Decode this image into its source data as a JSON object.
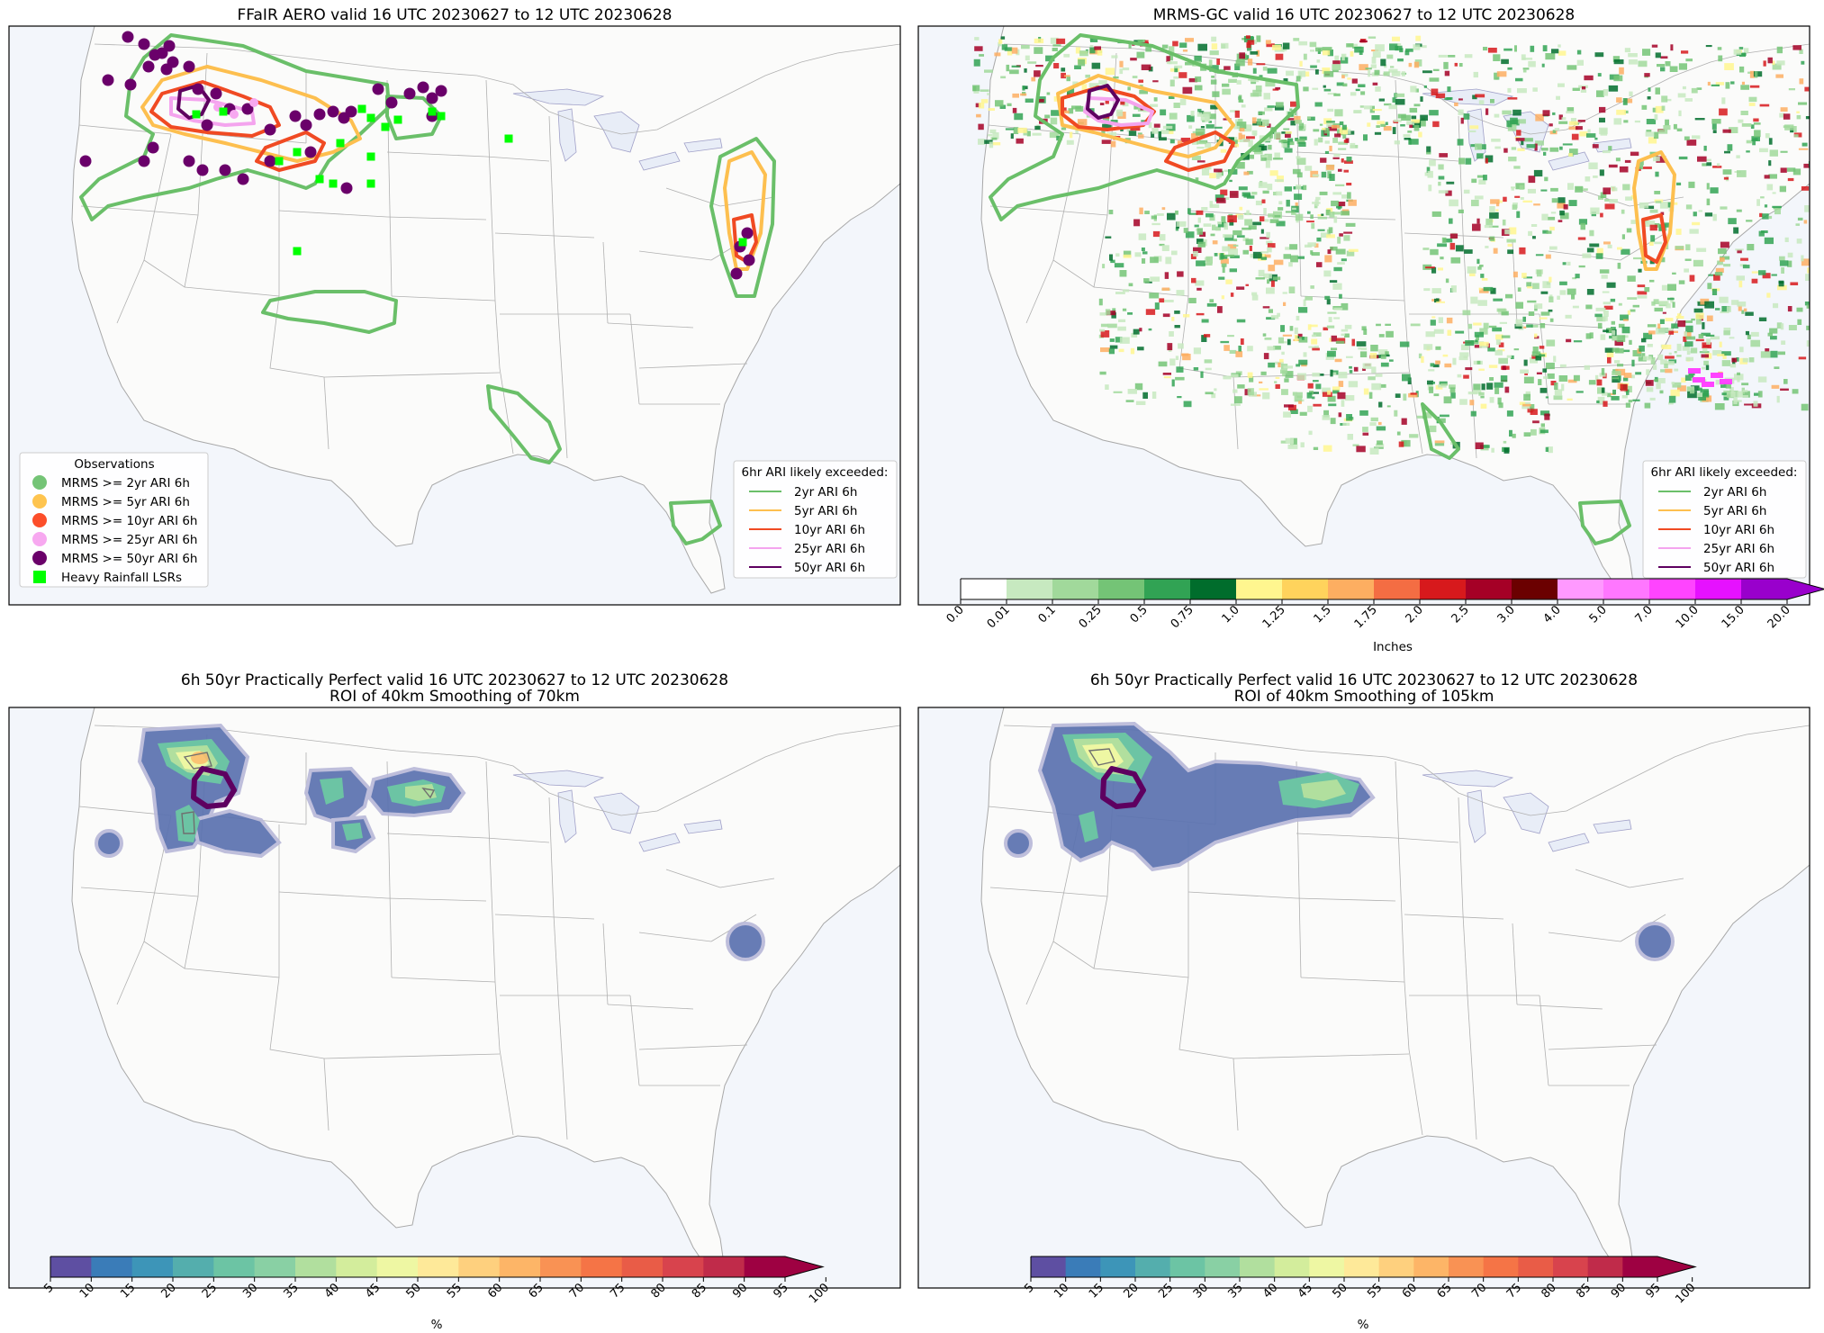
{
  "panels": [
    {
      "title": "FFaIR AERO valid 16 UTC 20230627 to 12 UTC 20230628",
      "obs_legend": {
        "title": "Observations",
        "items": [
          {
            "label": "MRMS >= 2yr ARI 6h",
            "color": "#74c476"
          },
          {
            "label": "MRMS >= 5yr ARI 6h",
            "color": "#fec44f"
          },
          {
            "label": "MRMS >= 10yr ARI 6h",
            "color": "#fc4e2a"
          },
          {
            "label": "MRMS >= 25yr ARI 6h",
            "color": "#f7a8f0"
          },
          {
            "label": "MRMS >= 50yr ARI 6h",
            "color": "#6a006a"
          },
          {
            "label": "Heavy Rainfall LSRs",
            "color": "#00ff00"
          }
        ]
      },
      "ari_legend": {
        "title": "6hr ARI likely exceeded:",
        "items": [
          {
            "label": "2yr ARI 6h",
            "color": "#6abf69"
          },
          {
            "label": "5yr ARI 6h",
            "color": "#fdbf4f"
          },
          {
            "label": "10yr ARI 6h",
            "color": "#f04a23"
          },
          {
            "label": "25yr ARI 6h",
            "color": "#f4a4ee"
          },
          {
            "label": "50yr ARI 6h",
            "color": "#5e0060"
          }
        ]
      }
    },
    {
      "title": "MRMS-GC valid 16 UTC 20230627 to 12 UTC 20230628",
      "ari_legend": {
        "title": "6hr ARI likely exceeded:",
        "items": [
          {
            "label": "2yr ARI 6h",
            "color": "#6abf69"
          },
          {
            "label": "5yr ARI 6h",
            "color": "#fdbf4f"
          },
          {
            "label": "10yr ARI 6h",
            "color": "#f04a23"
          },
          {
            "label": "25yr ARI 6h",
            "color": "#f4a4ee"
          },
          {
            "label": "50yr ARI 6h",
            "color": "#5e0060"
          }
        ]
      },
      "colorbar": {
        "label": "Inches",
        "ticks": [
          "0.0",
          "0.01",
          "0.1",
          "0.25",
          "0.5",
          "0.75",
          "1.0",
          "1.25",
          "1.5",
          "1.75",
          "2.0",
          "2.5",
          "3.0",
          "4.0",
          "5.0",
          "7.0",
          "10.0",
          "15.0",
          "20.0"
        ],
        "colors": [
          "#ffffff",
          "#c7e9c0",
          "#a1d99b",
          "#74c476",
          "#31a354",
          "#006d2c",
          "#fff68f",
          "#ffd35c",
          "#fdae61",
          "#f46d43",
          "#d7191c",
          "#a50026",
          "#6b0000",
          "#ff99ff",
          "#ff77ff",
          "#ff44ff",
          "#e611ff",
          "#9900cc"
        ]
      }
    },
    {
      "title": "6h 50yr Practically Perfect valid 16 UTC 20230627 to 12 UTC 20230628",
      "subtitle": "ROI of 40km Smoothing of 70km",
      "colorbar": {
        "label": "%",
        "ticks": [
          "5",
          "10",
          "15",
          "20",
          "25",
          "30",
          "35",
          "40",
          "45",
          "50",
          "55",
          "60",
          "65",
          "70",
          "75",
          "80",
          "85",
          "90",
          "95",
          "100"
        ],
        "colors": [
          "#5e4fa2",
          "#3a7cb8",
          "#3d95b8",
          "#54aead",
          "#6cc4a4",
          "#89d0a4",
          "#b1df9e",
          "#d3ed9c",
          "#eef7a3",
          "#fee999",
          "#fed07e",
          "#fdb567",
          "#f99254",
          "#f57446",
          "#e95c47",
          "#d8434d",
          "#c02b4a",
          "#9e0142"
        ]
      }
    },
    {
      "title": "6h 50yr Practically Perfect valid 16 UTC 20230627 to 12 UTC 20230628",
      "subtitle": "ROI of 40km Smoothing of 105km",
      "colorbar": {
        "label": "%",
        "ticks": [
          "5",
          "10",
          "15",
          "20",
          "25",
          "30",
          "35",
          "40",
          "45",
          "50",
          "55",
          "60",
          "65",
          "70",
          "75",
          "80",
          "85",
          "90",
          "95",
          "100"
        ],
        "colors": [
          "#5e4fa2",
          "#3a7cb8",
          "#3d95b8",
          "#54aead",
          "#6cc4a4",
          "#89d0a4",
          "#b1df9e",
          "#d3ed9c",
          "#eef7a3",
          "#fee999",
          "#fed07e",
          "#fdb567",
          "#f99254",
          "#f57446",
          "#e95c47",
          "#d8434d",
          "#c02b4a",
          "#9e0142"
        ]
      }
    }
  ],
  "colors": {
    "ocean": "#f3f6fb",
    "land": "#fbfbfa",
    "border": "#b0b0b0",
    "frame": "#000000"
  }
}
